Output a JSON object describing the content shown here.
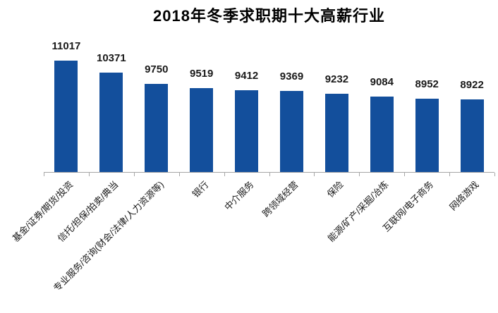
{
  "chart_data": {
    "type": "bar",
    "title": "2018年冬季求职期十大高薪行业",
    "categories": [
      "基金/证券/期货/投资",
      "信托/担保/拍卖/典当",
      "专业服务/咨询(财会/法律/人力资源等)",
      "银行",
      "中介服务",
      "跨领域经营",
      "保险",
      "能源/矿产/采掘/冶炼",
      "互联网/电子商务",
      "网络游戏"
    ],
    "values": [
      11017,
      10371,
      9750,
      9519,
      9412,
      9369,
      9232,
      9084,
      8952,
      8922
    ],
    "xlabel": "",
    "ylabel": "",
    "ylim": [
      5000,
      11200
    ],
    "y_axis_visible": false,
    "grid": false,
    "legend_position": "none",
    "value_labels_position": "above bars",
    "category_label_rotation_deg": 45,
    "colors": {
      "bar": "#134f9c",
      "axis": "#a6a6a6",
      "value_label": "#1a1a1a",
      "category_label": "#1a1a1a",
      "title": "#000000",
      "background": "#ffffff"
    }
  }
}
